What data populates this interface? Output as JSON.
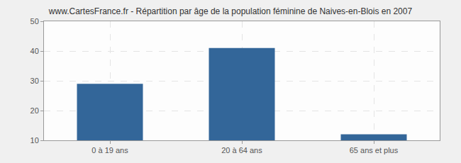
{
  "chart_data": {
    "type": "bar",
    "title": "www.CartesFrance.fr - Répartition par âge de la population féminine de Naives-en-Blois en 2007",
    "categories": [
      "0 à 19 ans",
      "20 à 64 ans",
      "65 ans et plus"
    ],
    "values": [
      29,
      41,
      12
    ],
    "color": "#336699",
    "ylim": [
      10,
      50
    ],
    "yticks": [
      10,
      20,
      30,
      40,
      50
    ],
    "grid": true
  }
}
